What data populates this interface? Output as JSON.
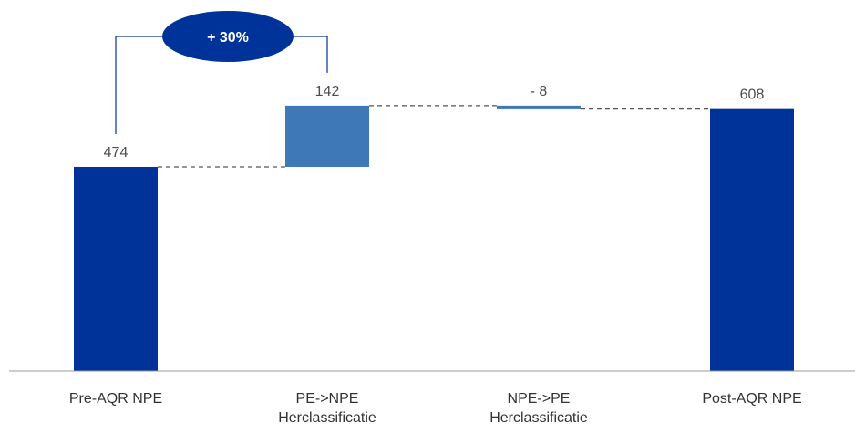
{
  "chart_data": {
    "type": "bar",
    "subtype": "waterfall",
    "categories": [
      [
        "Pre-AQR NPE"
      ],
      [
        "PE->NPE",
        "Herclassificatie"
      ],
      [
        "NPE->PE",
        "Herclassificatie"
      ],
      [
        "Post-AQR NPE"
      ]
    ],
    "values": [
      474,
      142,
      -8,
      608
    ],
    "value_labels": [
      "474",
      "142",
      "- 8",
      "608"
    ],
    "bar_kinds": [
      "total",
      "delta",
      "delta",
      "total"
    ],
    "colors": {
      "total": "#003399",
      "delta": "#3f78b7",
      "connector": "#555555",
      "bracket": "#003399",
      "badge": "#003399"
    },
    "annotation": {
      "text": "+ 30%",
      "from_category": 0,
      "to_category": 1
    },
    "ylim": [
      0,
      730
    ],
    "grid": false,
    "legend": "none"
  }
}
